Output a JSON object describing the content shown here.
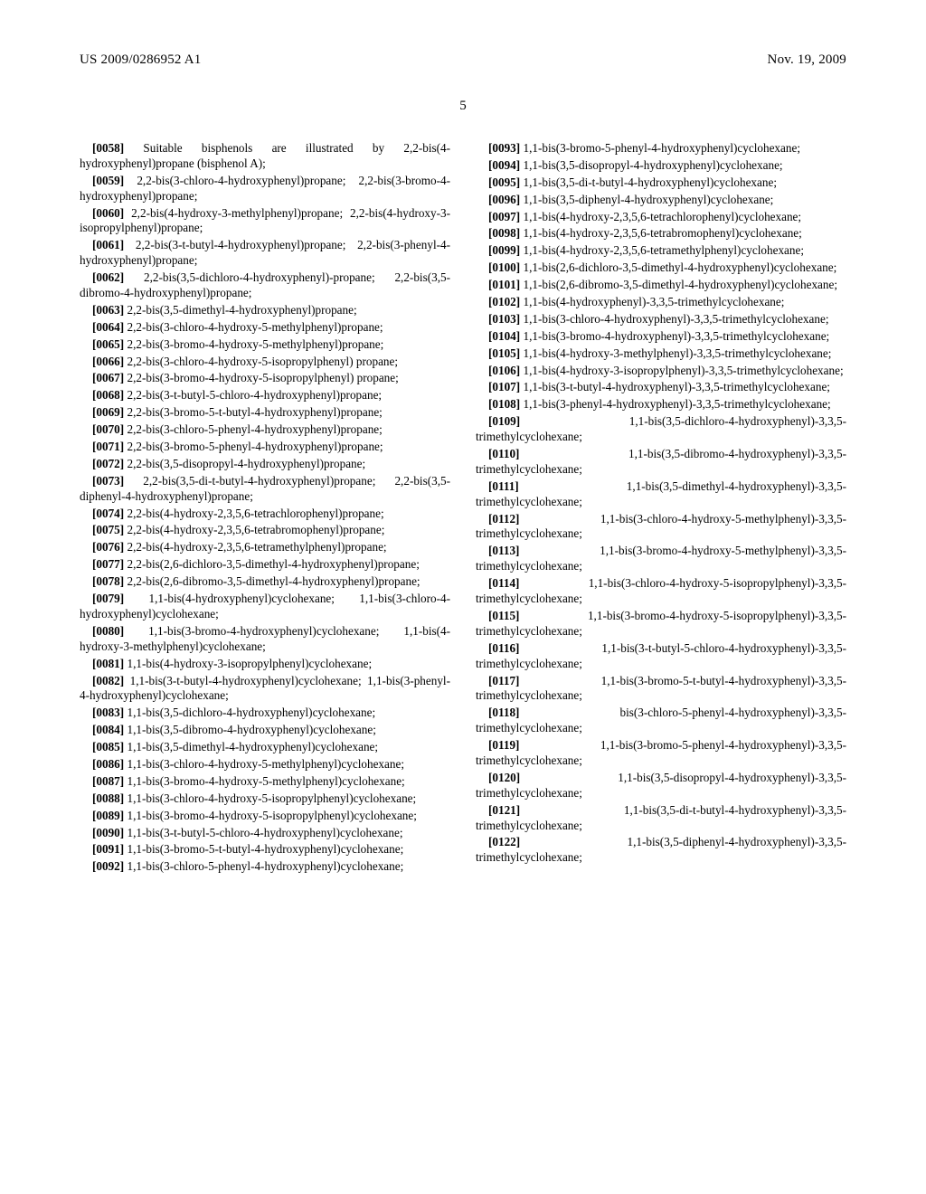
{
  "header": {
    "left": "US 2009/0286952 A1",
    "right": "Nov. 19, 2009"
  },
  "page_number": "5",
  "paragraphs": [
    {
      "n": "[0058]",
      "t": "Suitable bisphenols are illustrated by 2,2-bis(4-hydroxyphenyl)propane (bisphenol A);"
    },
    {
      "n": "[0059]",
      "t": "2,2-bis(3-chloro-4-hydroxyphenyl)propane; 2,2-bis(3-bromo-4-hydroxyphenyl)propane;"
    },
    {
      "n": "[0060]",
      "t": "2,2-bis(4-hydroxy-3-methylphenyl)propane; 2,2-bis(4-hydroxy-3-isopropylphenyl)propane;"
    },
    {
      "n": "[0061]",
      "t": "2,2-bis(3-t-butyl-4-hydroxyphenyl)propane; 2,2-bis(3-phenyl-4-hydroxyphenyl)propane;"
    },
    {
      "n": "[0062]",
      "t": "2,2-bis(3,5-dichloro-4-hydroxyphenyl)-propane; 2,2-bis(3,5-dibromo-4-hydroxyphenyl)propane;"
    },
    {
      "n": "[0063]",
      "t": "2,2-bis(3,5-dimethyl-4-hydroxyphenyl)propane;"
    },
    {
      "n": "[0064]",
      "t": "2,2-bis(3-chloro-4-hydroxy-5-methylphenyl)propane;"
    },
    {
      "n": "[0065]",
      "t": "2,2-bis(3-bromo-4-hydroxy-5-methylphenyl)propane;"
    },
    {
      "n": "[0066]",
      "t": "2,2-bis(3-chloro-4-hydroxy-5-isopropylphenyl) propane;"
    },
    {
      "n": "[0067]",
      "t": "2,2-bis(3-bromo-4-hydroxy-5-isopropylphenyl) propane;"
    },
    {
      "n": "[0068]",
      "t": "2,2-bis(3-t-butyl-5-chloro-4-hydroxyphenyl)propane;"
    },
    {
      "n": "[0069]",
      "t": "2,2-bis(3-bromo-5-t-butyl-4-hydroxyphenyl)propane;"
    },
    {
      "n": "[0070]",
      "t": "2,2-bis(3-chloro-5-phenyl-4-hydroxyphenyl)propane;"
    },
    {
      "n": "[0071]",
      "t": "2,2-bis(3-bromo-5-phenyl-4-hydroxyphenyl)propane;"
    },
    {
      "n": "[0072]",
      "t": "2,2-bis(3,5-disopropyl-4-hydroxyphenyl)propane;"
    },
    {
      "n": "[0073]",
      "t": "2,2-bis(3,5-di-t-butyl-4-hydroxyphenyl)propane; 2,2-bis(3,5-diphenyl-4-hydroxyphenyl)propane;"
    },
    {
      "n": "[0074]",
      "t": "2,2-bis(4-hydroxy-2,3,5,6-tetrachlorophenyl)propane;"
    },
    {
      "n": "[0075]",
      "t": "2,2-bis(4-hydroxy-2,3,5,6-tetrabromophenyl)propane;"
    },
    {
      "n": "[0076]",
      "t": "2,2-bis(4-hydroxy-2,3,5,6-tetramethylphenyl)propane;"
    },
    {
      "n": "[0077]",
      "t": "2,2-bis(2,6-dichloro-3,5-dimethyl-4-hydroxyphenyl)propane;"
    },
    {
      "n": "[0078]",
      "t": "2,2-bis(2,6-dibromo-3,5-dimethyl-4-hydroxyphenyl)propane;"
    },
    {
      "n": "[0079]",
      "t": "1,1-bis(4-hydroxyphenyl)cyclohexane; 1,1-bis(3-chloro-4-hydroxyphenyl)cyclohexane;"
    },
    {
      "n": "[0080]",
      "t": "1,1-bis(3-bromo-4-hydroxyphenyl)cyclohexane; 1,1-bis(4-hydroxy-3-methylphenyl)cyclohexane;"
    },
    {
      "n": "[0081]",
      "t": "1,1-bis(4-hydroxy-3-isopropylphenyl)cyclohexane;"
    },
    {
      "n": "[0082]",
      "t": "1,1-bis(3-t-butyl-4-hydroxyphenyl)cyclohexane; 1,1-bis(3-phenyl-4-hydroxyphenyl)cyclohexane;"
    },
    {
      "n": "[0083]",
      "t": "1,1-bis(3,5-dichloro-4-hydroxyphenyl)cyclohexane;"
    },
    {
      "n": "[0084]",
      "t": "1,1-bis(3,5-dibromo-4-hydroxyphenyl)cyclohexane;"
    },
    {
      "n": "[0085]",
      "t": "1,1-bis(3,5-dimethyl-4-hydroxyphenyl)cyclohexane;"
    },
    {
      "n": "[0086]",
      "t": "1,1-bis(3-chloro-4-hydroxy-5-methylphenyl)cyclohexane;"
    },
    {
      "n": "[0087]",
      "t": "1,1-bis(3-bromo-4-hydroxy-5-methylphenyl)cyclohexane;"
    },
    {
      "n": "[0088]",
      "t": "1,1-bis(3-chloro-4-hydroxy-5-isopropylphenyl)cyclohexane;"
    },
    {
      "n": "[0089]",
      "t": "1,1-bis(3-bromo-4-hydroxy-5-isopropylphenyl)cyclohexane;"
    },
    {
      "n": "[0090]",
      "t": "1,1-bis(3-t-butyl-5-chloro-4-hydroxyphenyl)cyclohexane;"
    },
    {
      "n": "[0091]",
      "t": "1,1-bis(3-bromo-5-t-butyl-4-hydroxyphenyl)cyclohexane;"
    },
    {
      "n": "[0092]",
      "t": "1,1-bis(3-chloro-5-phenyl-4-hydroxyphenyl)cyclohexane;"
    },
    {
      "n": "[0093]",
      "t": "1,1-bis(3-bromo-5-phenyl-4-hydroxyphenyl)cyclohexane;"
    },
    {
      "n": "[0094]",
      "t": "1,1-bis(3,5-disopropyl-4-hydroxyphenyl)cyclohexane;"
    },
    {
      "n": "[0095]",
      "t": "1,1-bis(3,5-di-t-butyl-4-hydroxyphenyl)cyclohexane;"
    },
    {
      "n": "[0096]",
      "t": "1,1-bis(3,5-diphenyl-4-hydroxyphenyl)cyclohexane;"
    },
    {
      "n": "[0097]",
      "t": "1,1-bis(4-hydroxy-2,3,5,6-tetrachlorophenyl)cyclohexane;"
    },
    {
      "n": "[0098]",
      "t": "1,1-bis(4-hydroxy-2,3,5,6-tetrabromophenyl)cyclohexane;"
    },
    {
      "n": "[0099]",
      "t": "1,1-bis(4-hydroxy-2,3,5,6-tetramethylphenyl)cyclohexane;"
    },
    {
      "n": "[0100]",
      "t": "1,1-bis(2,6-dichloro-3,5-dimethyl-4-hydroxyphenyl)cyclohexane;"
    },
    {
      "n": "[0101]",
      "t": "1,1-bis(2,6-dibromo-3,5-dimethyl-4-hydroxyphenyl)cyclohexane;"
    },
    {
      "n": "[0102]",
      "t": "1,1-bis(4-hydroxyphenyl)-3,3,5-trimethylcyclohexane;"
    },
    {
      "n": "[0103]",
      "t": "1,1-bis(3-chloro-4-hydroxyphenyl)-3,3,5-trimethylcyclohexane;"
    },
    {
      "n": "[0104]",
      "t": "1,1-bis(3-bromo-4-hydroxyphenyl)-3,3,5-trimethylcyclohexane;"
    },
    {
      "n": "[0105]",
      "t": "1,1-bis(4-hydroxy-3-methylphenyl)-3,3,5-trimethylcyclohexane;"
    },
    {
      "n": "[0106]",
      "t": "1,1-bis(4-hydroxy-3-isopropylphenyl)-3,3,5-trimethylcyclohexane;"
    },
    {
      "n": "[0107]",
      "t": "1,1-bis(3-t-butyl-4-hydroxyphenyl)-3,3,5-trimethylcyclohexane;"
    },
    {
      "n": "[0108]",
      "t": "1,1-bis(3-phenyl-4-hydroxyphenyl)-3,3,5-trimethylcyclohexane;"
    },
    {
      "n": "[0109]",
      "t": "1,1-bis(3,5-dichloro-4-hydroxyphenyl)-3,3,5-trimethylcyclohexane;"
    },
    {
      "n": "[0110]",
      "t": "1,1-bis(3,5-dibromo-4-hydroxyphenyl)-3,3,5-trimethylcyclohexane;"
    },
    {
      "n": "[0111]",
      "t": "1,1-bis(3,5-dimethyl-4-hydroxyphenyl)-3,3,5-trimethylcyclohexane;"
    },
    {
      "n": "[0112]",
      "t": "1,1-bis(3-chloro-4-hydroxy-5-methylphenyl)-3,3,5-trimethylcyclohexane;"
    },
    {
      "n": "[0113]",
      "t": "1,1-bis(3-bromo-4-hydroxy-5-methylphenyl)-3,3,5-trimethylcyclohexane;"
    },
    {
      "n": "[0114]",
      "t": "1,1-bis(3-chloro-4-hydroxy-5-isopropylphenyl)-3,3,5-trimethylcyclohexane;"
    },
    {
      "n": "[0115]",
      "t": "1,1-bis(3-bromo-4-hydroxy-5-isopropylphenyl)-3,3,5-trimethylcyclohexane;"
    },
    {
      "n": "[0116]",
      "t": "1,1-bis(3-t-butyl-5-chloro-4-hydroxyphenyl)-3,3,5-trimethylcyclohexane;"
    },
    {
      "n": "[0117]",
      "t": "1,1-bis(3-bromo-5-t-butyl-4-hydroxyphenyl)-3,3,5-trimethylcyclohexane;"
    },
    {
      "n": "[0118]",
      "t": "bis(3-chloro-5-phenyl-4-hydroxyphenyl)-3,3,5-trimethylcyclohexane;"
    },
    {
      "n": "[0119]",
      "t": "1,1-bis(3-bromo-5-phenyl-4-hydroxyphenyl)-3,3,5-trimethylcyclohexane;"
    },
    {
      "n": "[0120]",
      "t": "1,1-bis(3,5-disopropyl-4-hydroxyphenyl)-3,3,5-trimethylcyclohexane;"
    },
    {
      "n": "[0121]",
      "t": "1,1-bis(3,5-di-t-butyl-4-hydroxyphenyl)-3,3,5-trimethylcyclohexane;"
    },
    {
      "n": "[0122]",
      "t": "1,1-bis(3,5-diphenyl-4-hydroxyphenyl)-3,3,5-trimethylcyclohexane;"
    }
  ]
}
